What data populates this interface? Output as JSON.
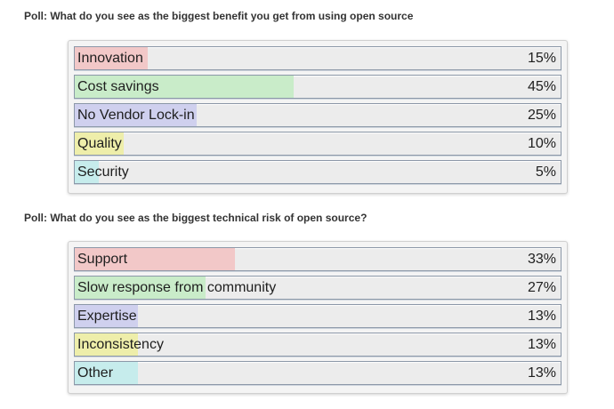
{
  "polls": [
    {
      "question": "Poll: What do you see as the biggest benefit you get from using open source",
      "options": [
        {
          "label": "Innovation",
          "percent_label": "15%",
          "value": 15,
          "color": "#f2c8c8"
        },
        {
          "label": "Cost savings",
          "percent_label": "45%",
          "value": 45,
          "color": "#c9ecc9"
        },
        {
          "label": "No Vendor Lock-in",
          "percent_label": "25%",
          "value": 25,
          "color": "#cfd0ee"
        },
        {
          "label": "Quality",
          "percent_label": "10%",
          "value": 10,
          "color": "#eeeeaa"
        },
        {
          "label": "Security",
          "percent_label": "5%",
          "value": 5,
          "color": "#c6ecec"
        }
      ]
    },
    {
      "question": "Poll: What do you see as the biggest technical risk of open source?",
      "options": [
        {
          "label": "Support",
          "percent_label": "33%",
          "value": 33,
          "color": "#f2c8c8"
        },
        {
          "label": "Slow response from community",
          "percent_label": "27%",
          "value": 27,
          "color": "#c9ecc9"
        },
        {
          "label": "Expertise",
          "percent_label": "13%",
          "value": 13,
          "color": "#cfd0ee"
        },
        {
          "label": "Inconsistency",
          "percent_label": "13%",
          "value": 13,
          "color": "#eeeeaa"
        },
        {
          "label": "Other",
          "percent_label": "13%",
          "value": 13,
          "color": "#c6ecec"
        }
      ]
    }
  ],
  "chart_data": [
    {
      "type": "bar",
      "title": "Poll: What do you see as the biggest benefit you get from using open source",
      "categories": [
        "Innovation",
        "Cost savings",
        "No Vendor Lock-in",
        "Quality",
        "Security"
      ],
      "values": [
        15,
        45,
        25,
        10,
        5
      ],
      "unit": "%",
      "orientation": "horizontal"
    },
    {
      "type": "bar",
      "title": "Poll: What do you see as the biggest technical risk of open source?",
      "categories": [
        "Support",
        "Slow response from community",
        "Expertise",
        "Inconsistency",
        "Other"
      ],
      "values": [
        33,
        27,
        13,
        13,
        13
      ],
      "unit": "%",
      "orientation": "horizontal"
    }
  ]
}
